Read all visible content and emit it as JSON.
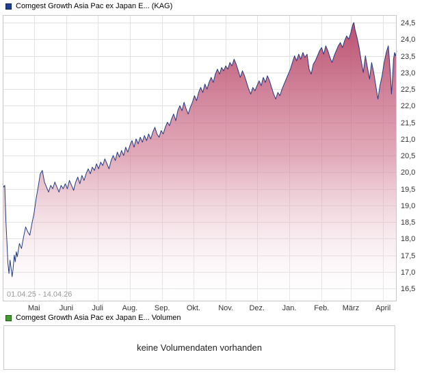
{
  "header": {
    "title": "Comgest Growth Asia Pac ex Japan E... (KAG)",
    "marker_color": "#1d3f94"
  },
  "volume_section": {
    "title": "Comgest Growth Asia Pac ex Japan E... Volumen",
    "marker_color": "#3f9e2e",
    "message": "keine Volumendaten vorhanden"
  },
  "chart_data": {
    "type": "area",
    "title": "Comgest Growth Asia Pac ex Japan E... (KAG)",
    "date_range_label": "01.04.25 - 14.04.26",
    "legend_position": "top-left",
    "grid": true,
    "grid_color": "#e2e2e2",
    "border_color": "#c8c8c8",
    "line_color": "#233a80",
    "label_color": "#333333",
    "date_label_color": "#999999",
    "fill_gradient": [
      {
        "offset": "0%",
        "color": "#b44063",
        "opacity": 0.95
      },
      {
        "offset": "50%",
        "color": "#d27f97",
        "opacity": 0.65
      },
      {
        "offset": "100%",
        "color": "#ffffff",
        "opacity": 0.12
      }
    ],
    "ylim": [
      16.5,
      24.5
    ],
    "x_total_days": 378,
    "y_ticks": [
      {
        "value": 24.5,
        "label": "24,5"
      },
      {
        "value": 24.0,
        "label": "24,0"
      },
      {
        "value": 23.5,
        "label": "23,5"
      },
      {
        "value": 23.0,
        "label": "23,0"
      },
      {
        "value": 22.5,
        "label": "22,5"
      },
      {
        "value": 22.0,
        "label": "22,0"
      },
      {
        "value": 21.5,
        "label": "21,5"
      },
      {
        "value": 21.0,
        "label": "21,0"
      },
      {
        "value": 20.5,
        "label": "20,5"
      },
      {
        "value": 20.0,
        "label": "20,0"
      },
      {
        "value": 19.5,
        "label": "19,5"
      },
      {
        "value": 19.0,
        "label": "19,0"
      },
      {
        "value": 18.5,
        "label": "18,5"
      },
      {
        "value": 18.0,
        "label": "18,0"
      },
      {
        "value": 17.5,
        "label": "17,5"
      },
      {
        "value": 17.0,
        "label": "17,0"
      },
      {
        "value": 16.5,
        "label": "16,5"
      }
    ],
    "month_ticks": [
      {
        "label": "Mai",
        "day": 30
      },
      {
        "label": "Juni",
        "day": 61
      },
      {
        "label": "Juli",
        "day": 91
      },
      {
        "label": "Aug.",
        "day": 122
      },
      {
        "label": "Sep.",
        "day": 153
      },
      {
        "label": "Okt.",
        "day": 183
      },
      {
        "label": "Nov.",
        "day": 214
      },
      {
        "label": "Dez.",
        "day": 244
      },
      {
        "label": "Jan.",
        "day": 275
      },
      {
        "label": "Feb.",
        "day": 306
      },
      {
        "label": "März",
        "day": 334
      },
      {
        "label": "April",
        "day": 365
      }
    ],
    "series": [
      {
        "name": "Comgest Growth Asia Pac ex Japan E... (KAG)",
        "points": [
          [
            0,
            19.65
          ],
          [
            1,
            19.55
          ],
          [
            2,
            19.6
          ],
          [
            3,
            18.55
          ],
          [
            4,
            17.9
          ],
          [
            5,
            17.25
          ],
          [
            6,
            16.95
          ],
          [
            7,
            17.35
          ],
          [
            8,
            17.1
          ],
          [
            9,
            16.85
          ],
          [
            10,
            17.1
          ],
          [
            11,
            17.5
          ],
          [
            12,
            17.3
          ],
          [
            13,
            17.6
          ],
          [
            14,
            17.45
          ],
          [
            16,
            17.85
          ],
          [
            18,
            17.7
          ],
          [
            20,
            18.05
          ],
          [
            22,
            18.35
          ],
          [
            24,
            18.2
          ],
          [
            26,
            18.1
          ],
          [
            28,
            18.45
          ],
          [
            30,
            18.75
          ],
          [
            32,
            19.2
          ],
          [
            34,
            19.55
          ],
          [
            36,
            19.95
          ],
          [
            38,
            20.05
          ],
          [
            40,
            19.7
          ],
          [
            42,
            19.55
          ],
          [
            44,
            19.4
          ],
          [
            46,
            19.6
          ],
          [
            48,
            19.5
          ],
          [
            50,
            19.7
          ],
          [
            52,
            19.55
          ],
          [
            54,
            19.4
          ],
          [
            56,
            19.6
          ],
          [
            58,
            19.5
          ],
          [
            60,
            19.65
          ],
          [
            62,
            19.5
          ],
          [
            64,
            19.75
          ],
          [
            66,
            19.6
          ],
          [
            68,
            19.45
          ],
          [
            70,
            19.7
          ],
          [
            72,
            19.85
          ],
          [
            74,
            19.65
          ],
          [
            76,
            19.9
          ],
          [
            78,
            19.75
          ],
          [
            80,
            19.95
          ],
          [
            82,
            20.1
          ],
          [
            84,
            19.95
          ],
          [
            86,
            20.15
          ],
          [
            88,
            20.05
          ],
          [
            90,
            20.25
          ],
          [
            92,
            20.1
          ],
          [
            94,
            20.3
          ],
          [
            96,
            20.2
          ],
          [
            98,
            20.4
          ],
          [
            100,
            20.25
          ],
          [
            102,
            20.1
          ],
          [
            104,
            20.35
          ],
          [
            106,
            20.5
          ],
          [
            108,
            20.35
          ],
          [
            110,
            20.6
          ],
          [
            112,
            20.45
          ],
          [
            114,
            20.65
          ],
          [
            116,
            20.5
          ],
          [
            118,
            20.75
          ],
          [
            120,
            20.6
          ],
          [
            122,
            20.8
          ],
          [
            124,
            20.95
          ],
          [
            126,
            20.75
          ],
          [
            128,
            21.0
          ],
          [
            130,
            20.85
          ],
          [
            132,
            21.05
          ],
          [
            134,
            20.9
          ],
          [
            136,
            21.1
          ],
          [
            138,
            20.95
          ],
          [
            140,
            21.15
          ],
          [
            142,
            21.0
          ],
          [
            144,
            21.2
          ],
          [
            146,
            21.35
          ],
          [
            148,
            21.15
          ],
          [
            150,
            21.05
          ],
          [
            152,
            21.25
          ],
          [
            154,
            21.15
          ],
          [
            156,
            21.35
          ],
          [
            158,
            21.5
          ],
          [
            160,
            21.4
          ],
          [
            162,
            21.6
          ],
          [
            164,
            21.75
          ],
          [
            166,
            21.55
          ],
          [
            168,
            21.85
          ],
          [
            170,
            22.0
          ],
          [
            172,
            21.85
          ],
          [
            174,
            22.1
          ],
          [
            176,
            21.9
          ],
          [
            178,
            21.75
          ],
          [
            180,
            21.95
          ],
          [
            182,
            22.1
          ],
          [
            184,
            22.3
          ],
          [
            186,
            22.15
          ],
          [
            188,
            22.4
          ],
          [
            190,
            22.55
          ],
          [
            192,
            22.4
          ],
          [
            194,
            22.65
          ],
          [
            196,
            22.5
          ],
          [
            198,
            22.7
          ],
          [
            200,
            22.85
          ],
          [
            202,
            22.7
          ],
          [
            204,
            22.95
          ],
          [
            206,
            23.1
          ],
          [
            208,
            22.95
          ],
          [
            210,
            23.15
          ],
          [
            212,
            23.05
          ],
          [
            214,
            23.2
          ],
          [
            216,
            23.1
          ],
          [
            218,
            23.3
          ],
          [
            220,
            23.2
          ],
          [
            222,
            23.4
          ],
          [
            224,
            23.25
          ],
          [
            226,
            23.05
          ],
          [
            228,
            22.85
          ],
          [
            230,
            23.05
          ],
          [
            232,
            22.9
          ],
          [
            234,
            22.7
          ],
          [
            236,
            22.5
          ],
          [
            238,
            22.35
          ],
          [
            240,
            22.55
          ],
          [
            242,
            22.45
          ],
          [
            244,
            22.6
          ],
          [
            246,
            22.75
          ],
          [
            248,
            22.6
          ],
          [
            250,
            22.85
          ],
          [
            252,
            22.7
          ],
          [
            254,
            22.9
          ],
          [
            256,
            22.75
          ],
          [
            258,
            22.55
          ],
          [
            260,
            22.35
          ],
          [
            262,
            22.2
          ],
          [
            264,
            22.4
          ],
          [
            266,
            22.3
          ],
          [
            268,
            22.5
          ],
          [
            270,
            22.65
          ],
          [
            272,
            22.8
          ],
          [
            274,
            22.95
          ],
          [
            276,
            23.1
          ],
          [
            278,
            23.3
          ],
          [
            280,
            23.5
          ],
          [
            282,
            23.35
          ],
          [
            284,
            23.55
          ],
          [
            286,
            23.4
          ],
          [
            288,
            23.6
          ],
          [
            290,
            23.45
          ],
          [
            292,
            23.55
          ],
          [
            294,
            23.1
          ],
          [
            296,
            22.95
          ],
          [
            298,
            23.25
          ],
          [
            300,
            23.35
          ],
          [
            302,
            23.5
          ],
          [
            304,
            23.65
          ],
          [
            306,
            23.75
          ],
          [
            308,
            23.55
          ],
          [
            310,
            23.8
          ],
          [
            312,
            23.65
          ],
          [
            314,
            23.45
          ],
          [
            316,
            23.3
          ],
          [
            318,
            23.5
          ],
          [
            320,
            23.65
          ],
          [
            322,
            23.8
          ],
          [
            324,
            23.9
          ],
          [
            326,
            23.75
          ],
          [
            328,
            23.95
          ],
          [
            330,
            24.1
          ],
          [
            332,
            24.0
          ],
          [
            334,
            24.2
          ],
          [
            336,
            24.45
          ],
          [
            337,
            24.5
          ],
          [
            338,
            24.3
          ],
          [
            340,
            24.05
          ],
          [
            342,
            23.75
          ],
          [
            344,
            23.35
          ],
          [
            346,
            23.0
          ],
          [
            348,
            23.5
          ],
          [
            350,
            23.15
          ],
          [
            352,
            22.8
          ],
          [
            354,
            23.3
          ],
          [
            356,
            23.0
          ],
          [
            358,
            22.6
          ],
          [
            360,
            22.2
          ],
          [
            362,
            22.6
          ],
          [
            364,
            22.9
          ],
          [
            366,
            23.3
          ],
          [
            368,
            23.6
          ],
          [
            370,
            23.8
          ],
          [
            371,
            23.4
          ],
          [
            372,
            22.95
          ],
          [
            373,
            22.35
          ],
          [
            374,
            22.8
          ],
          [
            375,
            23.4
          ],
          [
            376,
            23.6
          ],
          [
            377,
            23.5
          ],
          [
            378,
            23.65
          ]
        ]
      }
    ]
  }
}
